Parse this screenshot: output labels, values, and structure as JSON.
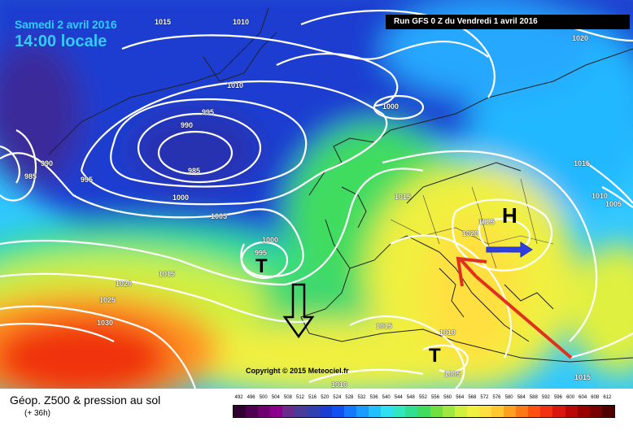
{
  "header": {
    "date": "Samedi 2 avril 2016",
    "time": "14:00 locale",
    "run": "Run GFS 0 Z du Vendredi 1 avril 2016"
  },
  "map": {
    "copyright": "Copyright © 2015 Meteociel.fr",
    "pressure_systems": [
      {
        "label": "H",
        "kind": "high"
      },
      {
        "label": "T",
        "kind": "low-atlantic"
      },
      {
        "label": "T",
        "kind": "low-mediterranean"
      }
    ],
    "isobar_labels": {
      "a1015": "1015",
      "a1010": "1010",
      "a1020": "1020",
      "b1010": "1010",
      "c1000": "1000",
      "d995": "995",
      "e990": "990",
      "f985": "985",
      "g990": "990",
      "h985": "985",
      "i995": "995",
      "j1000": "1000",
      "k1005": "1005",
      "l1000": "1000",
      "m995": "995",
      "n1015": "1015",
      "o1020": "1020",
      "p1025": "1025",
      "q1030": "1030",
      "r1015": "1015",
      "s1025": "1025",
      "t1020": "1020",
      "u1015": "1015",
      "v1010": "1010",
      "w1005": "1005",
      "x1015": "1015",
      "y1010": "1010",
      "z1005": "1005",
      "aa1010": "1010",
      "ab1015": "1015"
    }
  },
  "legend": {
    "title": "Géop. Z500 & pression au sol",
    "subtitle": "(+ 36h)",
    "ticks": [
      "492",
      "496",
      "500",
      "504",
      "508",
      "512",
      "516",
      "520",
      "524",
      "528",
      "532",
      "536",
      "540",
      "544",
      "548",
      "552",
      "556",
      "560",
      "564",
      "568",
      "572",
      "576",
      "580",
      "584",
      "588",
      "592",
      "596",
      "600",
      "604",
      "608",
      "612"
    ],
    "colors": [
      "#300030",
      "#500050",
      "#700070",
      "#8a008a",
      "#6a2a8a",
      "#4a3a9a",
      "#3040b0",
      "#1a3cd0",
      "#1050f0",
      "#1478ff",
      "#1a9cff",
      "#22c0ff",
      "#2ee0f0",
      "#30e8c0",
      "#30e090",
      "#40dc60",
      "#70e040",
      "#a0e840",
      "#d0f040",
      "#f0f040",
      "#ffe040",
      "#ffc830",
      "#ffa020",
      "#ff7818",
      "#ff5010",
      "#f03010",
      "#d81810",
      "#b80808",
      "#980000",
      "#780000",
      "#500000"
    ]
  }
}
